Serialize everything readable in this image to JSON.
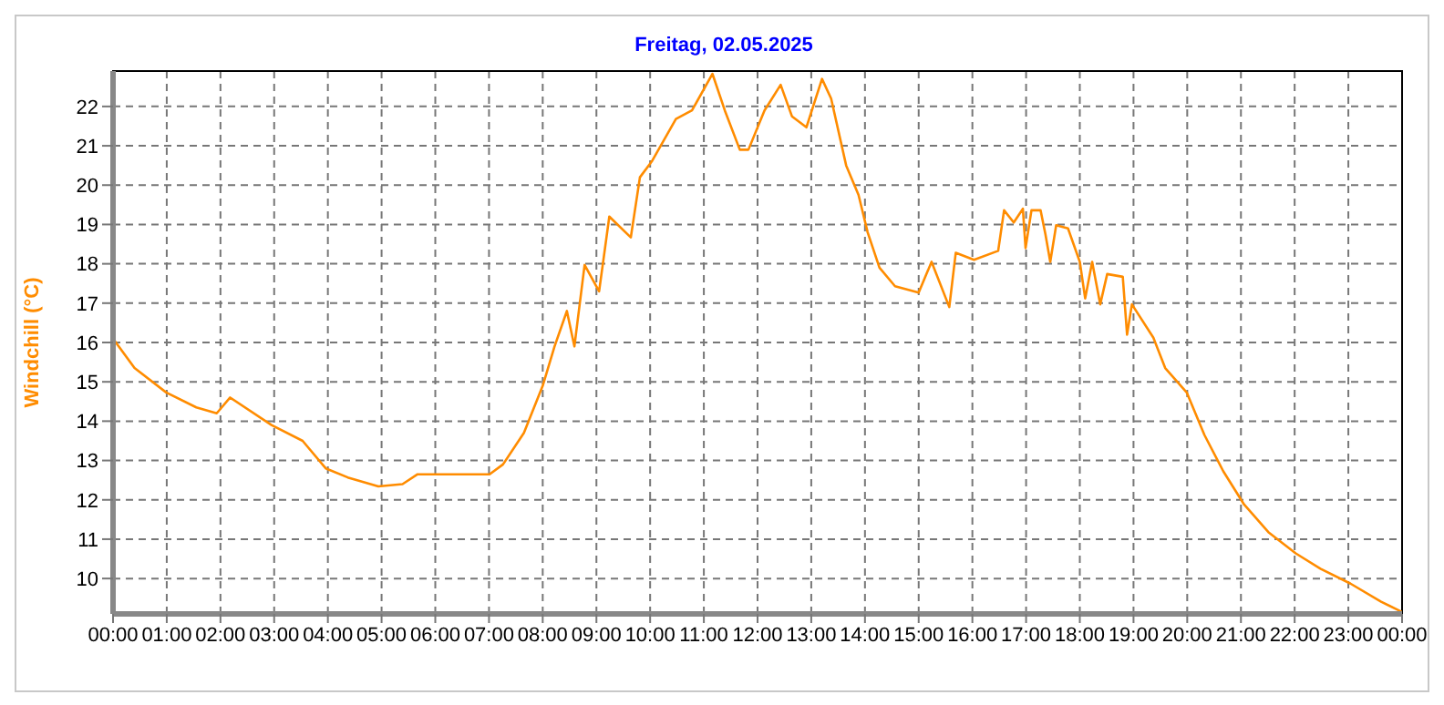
{
  "chart_data": {
    "type": "line",
    "title": "Freitag, 02.05.2025",
    "ylabel": "Windchill  (°C)",
    "x": [
      0,
      0.4,
      0.99,
      1.55,
      1.93,
      2.18,
      2.95,
      3.53,
      3.96,
      4.37,
      4.94,
      5.39,
      5.67,
      7.01,
      7.26,
      7.65,
      8.0,
      8.22,
      8.45,
      8.59,
      8.78,
      9.05,
      9.24,
      9.64,
      9.81,
      10.03,
      10.48,
      10.78,
      11.16,
      11.39,
      11.67,
      11.83,
      12.13,
      12.43,
      12.64,
      12.91,
      13.2,
      13.37,
      13.65,
      13.88,
      14.05,
      14.27,
      14.56,
      15.0,
      15.24,
      15.57,
      15.69,
      16.03,
      16.48,
      16.59,
      16.77,
      16.94,
      16.99,
      17.1,
      17.27,
      17.36,
      17.45,
      17.56,
      17.78,
      18.0,
      18.1,
      18.23,
      18.38,
      18.51,
      18.8,
      18.88,
      18.97,
      19.37,
      19.59,
      19.99,
      20.32,
      20.67,
      21.06,
      21.51,
      22.02,
      22.48,
      23.04,
      23.61,
      24
    ],
    "series": [
      {
        "color": "#ff8c00",
        "values": [
          16.1,
          15.35,
          14.73,
          14.35,
          14.2,
          14.6,
          13.9,
          13.5,
          12.8,
          12.57,
          12.34,
          12.4,
          12.65,
          12.65,
          12.9,
          13.7,
          14.9,
          15.9,
          16.8,
          15.9,
          17.97,
          17.3,
          19.2,
          18.67,
          20.2,
          20.6,
          21.68,
          21.9,
          22.83,
          21.9,
          20.9,
          20.9,
          21.9,
          22.55,
          21.75,
          21.47,
          22.7,
          22.2,
          20.5,
          19.75,
          18.8,
          17.9,
          17.43,
          17.27,
          18.05,
          16.9,
          18.28,
          18.1,
          18.33,
          19.36,
          19.05,
          19.4,
          18.4,
          19.36,
          19.36,
          18.75,
          18.05,
          18.98,
          18.9,
          18.05,
          17.12,
          18.05,
          16.97,
          17.74,
          17.67,
          16.2,
          16.97,
          16.12,
          15.35,
          14.73,
          13.65,
          12.73,
          11.88,
          11.18,
          10.64,
          10.25,
          9.87,
          9.41,
          9.15
        ]
      }
    ],
    "xlim": [
      0,
      24
    ],
    "xticks": [
      {
        "value": 0,
        "label": "00:00"
      },
      {
        "value": 1,
        "label": "01:00"
      },
      {
        "value": 2,
        "label": "02:00"
      },
      {
        "value": 3,
        "label": "03:00"
      },
      {
        "value": 4,
        "label": "04:00"
      },
      {
        "value": 5,
        "label": "05:00"
      },
      {
        "value": 6,
        "label": "06:00"
      },
      {
        "value": 7,
        "label": "07:00"
      },
      {
        "value": 8,
        "label": "08:00"
      },
      {
        "value": 9,
        "label": "09:00"
      },
      {
        "value": 10,
        "label": "10:00"
      },
      {
        "value": 11,
        "label": "11:00"
      },
      {
        "value": 12,
        "label": "12:00"
      },
      {
        "value": 13,
        "label": "13:00"
      },
      {
        "value": 14,
        "label": "14:00"
      },
      {
        "value": 15,
        "label": "15:00"
      },
      {
        "value": 16,
        "label": "16:00"
      },
      {
        "value": 17,
        "label": "17:00"
      },
      {
        "value": 18,
        "label": "18:00"
      },
      {
        "value": 19,
        "label": "19:00"
      },
      {
        "value": 20,
        "label": "20:00"
      },
      {
        "value": 21,
        "label": "21:00"
      },
      {
        "value": 22,
        "label": "22:00"
      },
      {
        "value": 23,
        "label": "23:00"
      },
      {
        "value": 24,
        "label": "00:00"
      }
    ],
    "ylim": [
      9.1,
      22.9
    ],
    "yticks": [
      10,
      11,
      12,
      13,
      14,
      15,
      16,
      17,
      18,
      19,
      20,
      21,
      22
    ],
    "grid": true,
    "line_style": "solid"
  }
}
